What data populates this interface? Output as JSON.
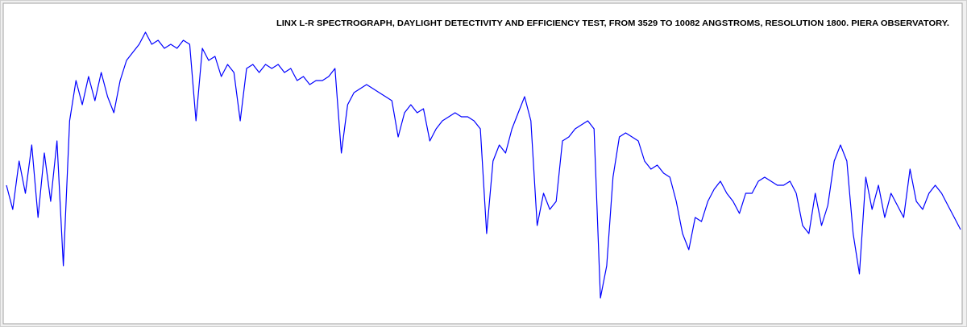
{
  "chart_data": {
    "type": "line",
    "title": "LINX L-R SPECTROGRAPH,  DAYLIGHT DETECTIVITY AND EFFICIENCY TEST, FROM 3529 TO 10082 ANGSTROMS, RESOLUTION 1800.  PIERA OBSERVATORY.",
    "color": "#0000ff",
    "values": [
      42.5,
      35,
      50,
      40,
      55,
      32.5,
      52.5,
      37.5,
      56.25,
      17.5,
      62.5,
      75,
      67.5,
      76.25,
      68.75,
      77.5,
      70,
      65,
      75,
      81.25,
      83.75,
      86.25,
      90,
      86.25,
      87.5,
      85,
      86.25,
      85,
      87.5,
      86.25,
      62.5,
      85,
      81.25,
      82.5,
      76.25,
      80,
      77.5,
      62.5,
      78.75,
      80,
      77.5,
      80,
      78.75,
      80,
      77.5,
      78.75,
      75,
      76.25,
      73.75,
      75,
      75,
      76.25,
      78.75,
      52.5,
      67.5,
      71.25,
      72.5,
      73.75,
      72.5,
      71.25,
      70,
      68.75,
      57.5,
      65,
      67.5,
      65,
      66.25,
      56.25,
      60,
      62.5,
      63.75,
      65,
      63.75,
      63.75,
      62.5,
      60,
      27.5,
      50,
      55,
      52.5,
      60,
      65,
      70,
      62.5,
      30,
      40,
      35,
      37.5,
      56.25,
      57.5,
      60,
      61.25,
      62.5,
      60,
      7.5,
      17.5,
      45,
      57.5,
      58.75,
      57.5,
      56.25,
      50,
      47.5,
      48.75,
      46.25,
      45,
      37.5,
      27.5,
      22.5,
      32.5,
      31.25,
      37.5,
      41.25,
      43.75,
      40,
      37.5,
      33.75,
      40,
      40,
      43.75,
      45,
      43.75,
      42.5,
      42.5,
      43.75,
      40,
      30,
      27.5,
      40,
      30,
      36.25,
      50,
      55,
      50,
      27.5,
      15,
      45,
      35,
      42.5,
      32.5,
      40,
      36.25,
      32.5,
      47.5,
      37.5,
      35,
      40,
      42.5,
      40,
      36.25,
      32.5,
      28.75
    ]
  }
}
